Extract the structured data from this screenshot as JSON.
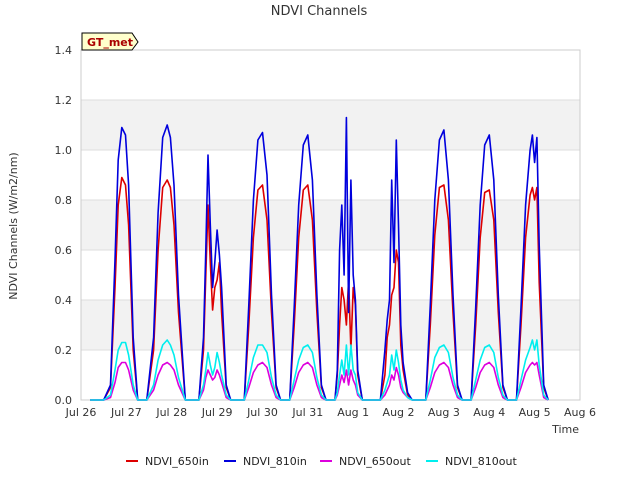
{
  "chart_data": {
    "type": "line",
    "title": "NDVI Channels",
    "xlabel": "Time",
    "ylabel": "NDVI Channels (W/m2/nm)",
    "ylim": [
      0,
      1.4
    ],
    "yticks": [
      0.0,
      0.2,
      0.4,
      0.6,
      0.8,
      1.0,
      1.2,
      1.4
    ],
    "ytick_labels": [
      "0.0",
      "0.2",
      "0.4",
      "0.6",
      "0.8",
      "1.0",
      "1.2",
      "1.4"
    ],
    "xlim": [
      0,
      11
    ],
    "xticks": [
      0,
      1,
      2,
      3,
      4,
      5,
      6,
      7,
      8,
      9,
      10,
      11
    ],
    "xtick_labels": [
      "Jul 26",
      "Jul 27",
      "Jul 28",
      "Jul 29",
      "Jul 30",
      "Jul 31",
      "Aug 1",
      "Aug 2",
      "Aug 3",
      "Aug 4",
      "Aug 5",
      "Aug 6"
    ],
    "grid": true,
    "site_badge": "GT_met",
    "legend_position": "bottom",
    "series": [
      {
        "name": "NDVI_650in",
        "color": "#dd0000",
        "x": [
          0.2,
          0.35,
          0.5,
          0.65,
          0.75,
          0.82,
          0.9,
          0.98,
          1.05,
          1.15,
          1.25,
          1.35,
          1.45,
          1.6,
          1.7,
          1.8,
          1.9,
          1.97,
          2.05,
          2.15,
          2.3,
          2.4,
          2.6,
          2.7,
          2.75,
          2.8,
          2.85,
          2.9,
          2.95,
          3.0,
          3.05,
          3.1,
          3.2,
          3.3,
          3.6,
          3.7,
          3.8,
          3.9,
          4.0,
          4.1,
          4.2,
          4.3,
          4.4,
          4.6,
          4.7,
          4.8,
          4.9,
          5.0,
          5.1,
          5.2,
          5.3,
          5.4,
          5.6,
          5.65,
          5.7,
          5.75,
          5.8,
          5.85,
          5.9,
          5.95,
          6.0,
          6.05,
          6.1,
          6.2,
          6.3,
          6.6,
          6.7,
          6.75,
          6.8,
          6.85,
          6.9,
          6.95,
          7.0,
          7.05,
          7.1,
          7.2,
          7.3,
          7.6,
          7.7,
          7.8,
          7.9,
          8.0,
          8.1,
          8.2,
          8.3,
          8.4,
          8.6,
          8.7,
          8.8,
          8.9,
          9.0,
          9.1,
          9.2,
          9.3,
          9.4,
          9.6,
          9.7,
          9.8,
          9.9,
          9.95,
          10.0,
          10.05,
          10.1,
          10.2,
          10.3
        ],
        "values": [
          0,
          0,
          0,
          0.05,
          0.45,
          0.78,
          0.89,
          0.86,
          0.7,
          0.2,
          0,
          0,
          0,
          0.2,
          0.6,
          0.85,
          0.88,
          0.85,
          0.7,
          0.35,
          0,
          0,
          0,
          0.2,
          0.5,
          0.78,
          0.55,
          0.36,
          0.45,
          0.48,
          0.55,
          0.35,
          0.05,
          0,
          0,
          0.3,
          0.65,
          0.84,
          0.86,
          0.72,
          0.35,
          0.05,
          0,
          0,
          0.3,
          0.65,
          0.84,
          0.86,
          0.72,
          0.35,
          0.05,
          0,
          0,
          0.1,
          0.3,
          0.45,
          0.4,
          0.3,
          0.48,
          0.2,
          0.45,
          0.38,
          0.1,
          0,
          0,
          0,
          0.1,
          0.25,
          0.3,
          0.42,
          0.45,
          0.6,
          0.55,
          0.22,
          0.12,
          0.02,
          0,
          0,
          0.3,
          0.66,
          0.85,
          0.86,
          0.72,
          0.35,
          0.05,
          0,
          0,
          0.3,
          0.65,
          0.83,
          0.84,
          0.72,
          0.35,
          0.05,
          0,
          0,
          0.3,
          0.65,
          0.82,
          0.85,
          0.8,
          0.85,
          0.47,
          0.05,
          0
        ]
      },
      {
        "name": "NDVI_810in",
        "color": "#0000dd",
        "x": [
          0.2,
          0.35,
          0.5,
          0.65,
          0.75,
          0.82,
          0.9,
          0.98,
          1.05,
          1.15,
          1.25,
          1.35,
          1.45,
          1.6,
          1.7,
          1.8,
          1.9,
          1.97,
          2.05,
          2.15,
          2.3,
          2.4,
          2.6,
          2.7,
          2.75,
          2.8,
          2.85,
          2.9,
          2.95,
          3.0,
          3.05,
          3.1,
          3.2,
          3.3,
          3.6,
          3.7,
          3.8,
          3.9,
          4.0,
          4.1,
          4.2,
          4.3,
          4.4,
          4.6,
          4.7,
          4.8,
          4.9,
          5.0,
          5.1,
          5.2,
          5.3,
          5.4,
          5.6,
          5.65,
          5.7,
          5.75,
          5.8,
          5.85,
          5.9,
          5.95,
          6.0,
          6.05,
          6.1,
          6.2,
          6.3,
          6.6,
          6.7,
          6.75,
          6.8,
          6.85,
          6.9,
          6.95,
          7.0,
          7.05,
          7.1,
          7.2,
          7.3,
          7.6,
          7.7,
          7.8,
          7.9,
          8.0,
          8.1,
          8.2,
          8.3,
          8.4,
          8.6,
          8.7,
          8.8,
          8.9,
          9.0,
          9.1,
          9.2,
          9.3,
          9.4,
          9.6,
          9.7,
          9.8,
          9.9,
          9.95,
          10.0,
          10.05,
          10.1,
          10.2,
          10.3
        ],
        "values": [
          0,
          0,
          0,
          0.06,
          0.56,
          0.96,
          1.09,
          1.06,
          0.86,
          0.25,
          0,
          0,
          0,
          0.25,
          0.75,
          1.05,
          1.1,
          1.05,
          0.86,
          0.42,
          0,
          0,
          0,
          0.25,
          0.6,
          0.98,
          0.7,
          0.45,
          0.55,
          0.68,
          0.58,
          0.45,
          0.06,
          0,
          0,
          0.38,
          0.8,
          1.04,
          1.07,
          0.9,
          0.42,
          0.06,
          0,
          0,
          0.37,
          0.78,
          1.02,
          1.06,
          0.88,
          0.42,
          0.06,
          0,
          0,
          0.12,
          0.6,
          0.78,
          0.5,
          1.13,
          0.35,
          0.88,
          0.5,
          0.4,
          0.12,
          0,
          0,
          0,
          0.2,
          0.32,
          0.4,
          0.88,
          0.55,
          1.04,
          0.7,
          0.3,
          0.15,
          0.03,
          0,
          0,
          0.38,
          0.8,
          1.04,
          1.08,
          0.88,
          0.42,
          0.06,
          0,
          0,
          0.37,
          0.78,
          1.02,
          1.06,
          0.88,
          0.42,
          0.06,
          0,
          0,
          0.37,
          0.78,
          1.0,
          1.06,
          0.95,
          1.05,
          0.62,
          0.06,
          0
        ]
      },
      {
        "name": "NDVI_650out",
        "color": "#dd00dd",
        "x": [
          0.2,
          0.35,
          0.5,
          0.65,
          0.75,
          0.82,
          0.9,
          0.98,
          1.05,
          1.15,
          1.25,
          1.35,
          1.45,
          1.6,
          1.7,
          1.8,
          1.9,
          1.97,
          2.05,
          2.15,
          2.3,
          2.4,
          2.6,
          2.7,
          2.75,
          2.8,
          2.85,
          2.9,
          2.95,
          3.0,
          3.05,
          3.1,
          3.2,
          3.3,
          3.6,
          3.7,
          3.8,
          3.9,
          4.0,
          4.1,
          4.2,
          4.3,
          4.4,
          4.6,
          4.7,
          4.8,
          4.9,
          5.0,
          5.1,
          5.2,
          5.3,
          5.4,
          5.6,
          5.65,
          5.7,
          5.75,
          5.8,
          5.85,
          5.9,
          5.95,
          6.0,
          6.05,
          6.1,
          6.2,
          6.3,
          6.6,
          6.7,
          6.75,
          6.8,
          6.85,
          6.9,
          6.95,
          7.0,
          7.05,
          7.1,
          7.2,
          7.3,
          7.6,
          7.7,
          7.8,
          7.9,
          8.0,
          8.1,
          8.2,
          8.3,
          8.4,
          8.6,
          8.7,
          8.8,
          8.9,
          9.0,
          9.1,
          9.2,
          9.3,
          9.4,
          9.6,
          9.7,
          9.8,
          9.9,
          9.95,
          10.0,
          10.05,
          10.1,
          10.2,
          10.3
        ],
        "values": [
          0,
          0,
          0,
          0.01,
          0.07,
          0.13,
          0.15,
          0.15,
          0.12,
          0.04,
          0,
          0,
          0,
          0.04,
          0.1,
          0.14,
          0.15,
          0.14,
          0.12,
          0.06,
          0,
          0,
          0,
          0.04,
          0.09,
          0.12,
          0.1,
          0.08,
          0.09,
          0.12,
          0.1,
          0.07,
          0.01,
          0,
          0,
          0.05,
          0.11,
          0.14,
          0.15,
          0.13,
          0.06,
          0.01,
          0,
          0,
          0.05,
          0.11,
          0.14,
          0.15,
          0.13,
          0.06,
          0.01,
          0,
          0,
          0.02,
          0.06,
          0.1,
          0.07,
          0.12,
          0.06,
          0.12,
          0.08,
          0.06,
          0.02,
          0,
          0,
          0,
          0.02,
          0.04,
          0.06,
          0.1,
          0.08,
          0.13,
          0.1,
          0.05,
          0.03,
          0.01,
          0,
          0,
          0.05,
          0.11,
          0.14,
          0.15,
          0.13,
          0.06,
          0.01,
          0,
          0,
          0.05,
          0.11,
          0.14,
          0.15,
          0.13,
          0.06,
          0.01,
          0,
          0,
          0.05,
          0.11,
          0.14,
          0.15,
          0.14,
          0.15,
          0.1,
          0.01,
          0
        ]
      },
      {
        "name": "NDVI_810out",
        "color": "#00eeee",
        "x": [
          0.2,
          0.35,
          0.5,
          0.65,
          0.75,
          0.82,
          0.9,
          0.98,
          1.05,
          1.15,
          1.25,
          1.35,
          1.45,
          1.6,
          1.7,
          1.8,
          1.9,
          1.97,
          2.05,
          2.15,
          2.3,
          2.4,
          2.6,
          2.7,
          2.75,
          2.8,
          2.85,
          2.9,
          2.95,
          3.0,
          3.05,
          3.1,
          3.2,
          3.3,
          3.6,
          3.7,
          3.8,
          3.9,
          4.0,
          4.1,
          4.2,
          4.3,
          4.4,
          4.6,
          4.7,
          4.8,
          4.9,
          5.0,
          5.1,
          5.2,
          5.3,
          5.4,
          5.6,
          5.65,
          5.7,
          5.75,
          5.8,
          5.85,
          5.9,
          5.95,
          6.0,
          6.05,
          6.1,
          6.2,
          6.3,
          6.6,
          6.7,
          6.75,
          6.8,
          6.85,
          6.9,
          6.95,
          7.0,
          7.05,
          7.1,
          7.2,
          7.3,
          7.6,
          7.7,
          7.8,
          7.9,
          8.0,
          8.1,
          8.2,
          8.3,
          8.4,
          8.6,
          8.7,
          8.8,
          8.9,
          9.0,
          9.1,
          9.2,
          9.3,
          9.4,
          9.6,
          9.7,
          9.8,
          9.9,
          9.95,
          10.0,
          10.05,
          10.1,
          10.2,
          10.3
        ],
        "values": [
          0,
          0,
          0,
          0.02,
          0.12,
          0.2,
          0.23,
          0.23,
          0.18,
          0.06,
          0,
          0,
          0,
          0.06,
          0.16,
          0.22,
          0.24,
          0.22,
          0.18,
          0.09,
          0,
          0,
          0,
          0.06,
          0.12,
          0.19,
          0.14,
          0.1,
          0.13,
          0.19,
          0.15,
          0.1,
          0.02,
          0,
          0,
          0.08,
          0.17,
          0.22,
          0.22,
          0.19,
          0.09,
          0.02,
          0,
          0,
          0.08,
          0.16,
          0.21,
          0.22,
          0.19,
          0.09,
          0.02,
          0,
          0,
          0.03,
          0.1,
          0.16,
          0.1,
          0.22,
          0.1,
          0.22,
          0.12,
          0.1,
          0.03,
          0,
          0,
          0,
          0.04,
          0.07,
          0.1,
          0.18,
          0.12,
          0.2,
          0.15,
          0.08,
          0.04,
          0.01,
          0,
          0,
          0.08,
          0.17,
          0.21,
          0.22,
          0.19,
          0.09,
          0.02,
          0,
          0,
          0.08,
          0.16,
          0.21,
          0.22,
          0.19,
          0.09,
          0.02,
          0,
          0,
          0.08,
          0.16,
          0.21,
          0.24,
          0.2,
          0.24,
          0.14,
          0.02,
          0
        ]
      }
    ]
  }
}
